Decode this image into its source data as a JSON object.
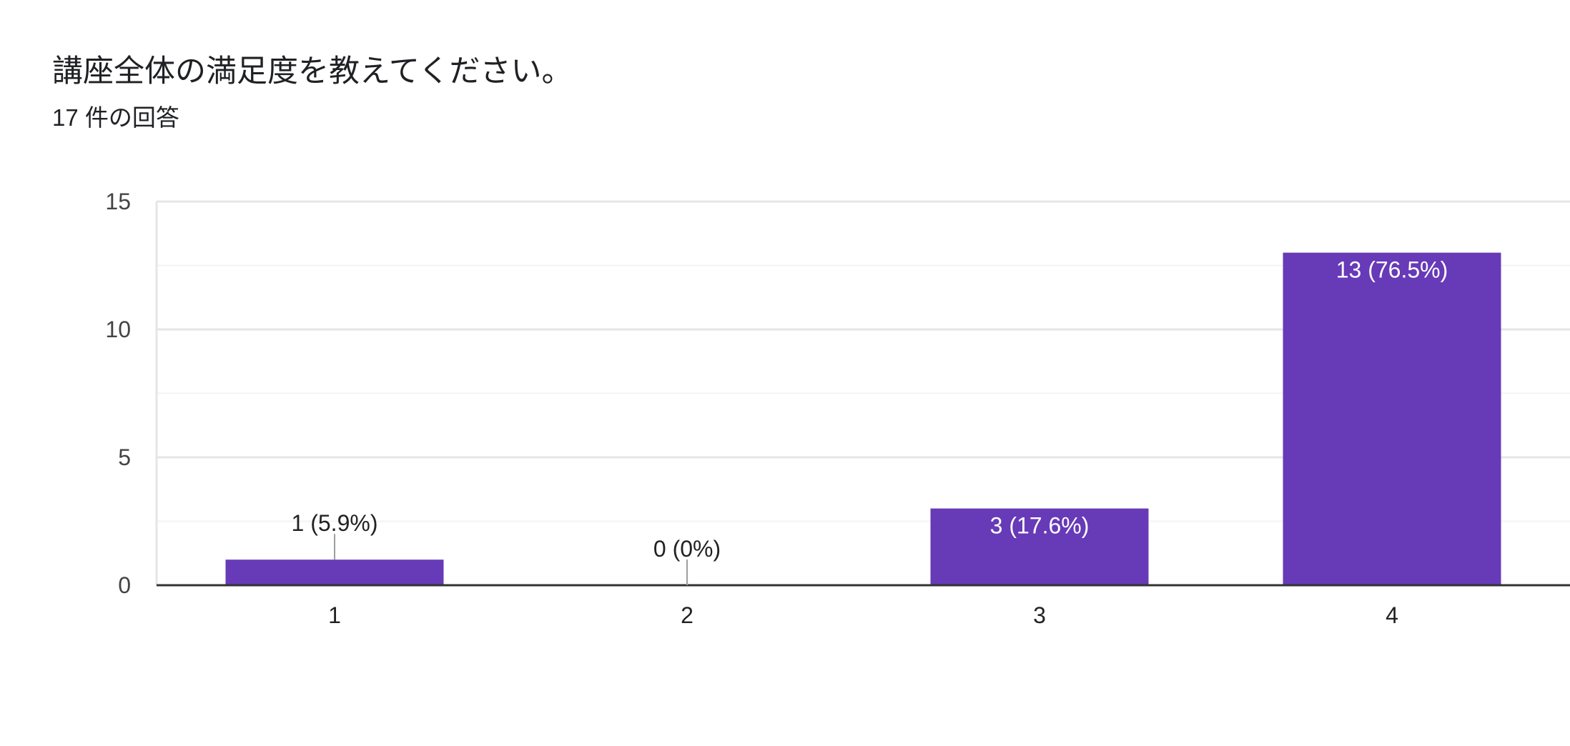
{
  "header": {
    "title": "講座全体の満足度を教えてください。",
    "response_count": "17 件の回答"
  },
  "chart_data": {
    "type": "bar",
    "categories": [
      "1",
      "2",
      "3",
      "4"
    ],
    "values": [
      1,
      0,
      3,
      13
    ],
    "data_labels": [
      "1 (5.9%)",
      "0 (0%)",
      "3 (17.6%)",
      "13 (76.5%)"
    ],
    "ylim": [
      0,
      15
    ],
    "yticks": [
      0,
      5,
      10,
      15
    ],
    "ytick_labels": [
      "0",
      "5",
      "10",
      "15"
    ],
    "grid": true,
    "legend": "none",
    "bar_color": "#673ab7"
  }
}
